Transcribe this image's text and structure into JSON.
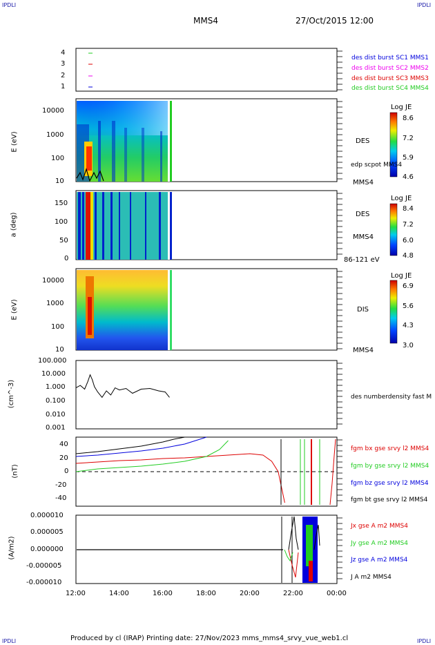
{
  "corners": {
    "tl": "IPDLI",
    "tr": "IPDLI",
    "bl": "IPDLI",
    "br": "IPDLI"
  },
  "header": {
    "spacecraft": "MMS4",
    "datetime": "27/Oct/2015 12:00"
  },
  "footer": "Produced by cl (IRAP)   Printing date: 27/Nov/2023   mms_mms4_srvy_vue_web1.cl",
  "colors": {
    "black": "#000000",
    "red": "#dd0000",
    "green": "#22cc22",
    "blue": "#0000dd",
    "magenta": "#ee00ee"
  },
  "chart_data": [
    {
      "type": "line",
      "title": "",
      "panel": "burst-availability",
      "yticks": [
        "4",
        "3",
        "2",
        "1"
      ],
      "series": [
        {
          "name": "des dist burst SC1 MMS1",
          "color": "#0000dd"
        },
        {
          "name": "des dist burst SC2 MMS2",
          "color": "#ee00ee"
        },
        {
          "name": "des dist burst SC3 MMS3",
          "color": "#dd0000"
        },
        {
          "name": "des dist burst SC4 MMS4",
          "color": "#22cc22"
        }
      ]
    },
    {
      "type": "heatmap",
      "panel": "des-energy-spectrogram",
      "ylabel": "E (eV)",
      "yticks": [
        "10000",
        "1000",
        "100",
        "10"
      ],
      "instrument": "DES",
      "overlay_label": "edp scpot MMS4",
      "spacecraft": "MMS4",
      "colorbar": {
        "title": "Log JE",
        "ticks": [
          "8.6",
          "7.2",
          "5.9",
          "4.6"
        ]
      }
    },
    {
      "type": "heatmap",
      "panel": "des-pitch-angle",
      "ylabel": "a (deg)",
      "yticks": [
        "150",
        "100",
        "50",
        "0"
      ],
      "instrument": "DES",
      "spacecraft": "MMS4",
      "energy_range": "86-121 eV",
      "colorbar": {
        "title": "Log JE",
        "ticks": [
          "8.4",
          "7.2",
          "6.0",
          "4.8"
        ]
      }
    },
    {
      "type": "heatmap",
      "panel": "dis-energy-spectrogram",
      "ylabel": "E (eV)",
      "yticks": [
        "10000",
        "1000",
        "100",
        "10"
      ],
      "instrument": "DIS",
      "spacecraft": "MMS4",
      "colorbar": {
        "title": "Log JE",
        "ticks": [
          "6.9",
          "5.6",
          "4.3",
          "3.0"
        ]
      }
    },
    {
      "type": "line",
      "panel": "density",
      "ylabel": "(cm^-3)",
      "yticks": [
        "100.000",
        "10.000",
        "1.000",
        "0.100",
        "0.010",
        "0.001"
      ],
      "log_scale": true,
      "series": [
        {
          "name": "des numberdensity fast M",
          "color": "#000000",
          "x_hours": [
            12.0,
            12.2,
            12.4,
            12.55,
            12.65,
            12.75,
            12.85,
            13.0,
            13.2,
            13.4,
            13.6,
            13.8,
            14.0,
            14.3,
            14.6,
            15.0,
            15.4,
            15.8,
            16.1,
            16.3
          ],
          "values": [
            1.0,
            1.5,
            0.8,
            3.0,
            9.0,
            4.0,
            1.2,
            0.5,
            0.2,
            0.6,
            0.3,
            1.0,
            0.7,
            0.9,
            0.4,
            0.8,
            0.9,
            0.6,
            0.5,
            0.2
          ]
        }
      ]
    },
    {
      "type": "line",
      "panel": "magnetic-field",
      "ylabel": "(nT)",
      "yticks": [
        "40",
        "20",
        "0",
        "-20",
        "-40"
      ],
      "ylim": [
        -50,
        50
      ],
      "series": [
        {
          "name": "fgm bx gse srvy l2 MMS4",
          "color": "#dd0000",
          "x_hours": [
            12.0,
            13.0,
            14.0,
            15.0,
            16.0,
            17.0,
            18.0,
            19.0,
            20.0,
            20.6,
            21.0,
            21.3,
            21.6
          ],
          "values": [
            12,
            14,
            16,
            17,
            19,
            20,
            22,
            24,
            26,
            24,
            15,
            0,
            -45
          ]
        },
        {
          "name": "fgm by gse srvy l2 MMS4",
          "color": "#22cc22",
          "x_hours": [
            12.0,
            13.0,
            14.0,
            15.0,
            16.0,
            17.0,
            18.0,
            18.6,
            19.0
          ],
          "values": [
            0,
            4,
            6,
            8,
            11,
            15,
            22,
            32,
            45
          ]
        },
        {
          "name": "fgm bz gse srvy l2 MMS4",
          "color": "#0000dd",
          "x_hours": [
            12.0,
            13.0,
            14.0,
            15.0,
            16.0,
            17.0,
            17.5,
            18.0
          ],
          "values": [
            22,
            24,
            27,
            30,
            34,
            40,
            45,
            50
          ]
        },
        {
          "name": "fgm bt gse srvy l2 MMS4",
          "color": "#000000",
          "x_hours": [
            12.0,
            13.0,
            14.0,
            15.0,
            16.0,
            16.5,
            17.0
          ],
          "values": [
            26,
            29,
            33,
            37,
            43,
            47,
            50
          ]
        }
      ]
    },
    {
      "type": "line",
      "panel": "current-density",
      "ylabel": "(A/m2)",
      "yticks": [
        "0.000010",
        "0.000005",
        "0.000000",
        "-0.000005",
        "-0.000010"
      ],
      "ylim": [
        -1e-05,
        1e-05
      ],
      "series": [
        {
          "name": "Jx gse A m2 MMS4",
          "color": "#dd0000"
        },
        {
          "name": "Jy gse A m2 MMS4",
          "color": "#22cc22"
        },
        {
          "name": "Jz gse A m2 MMS4",
          "color": "#0000dd"
        },
        {
          "name": "J A m2 MMS4",
          "color": "#000000"
        }
      ]
    }
  ],
  "xaxis": {
    "ticks": [
      "12:00",
      "14:00",
      "16:00",
      "18:00",
      "20:00",
      "22:00",
      "00:00"
    ],
    "range_hours": [
      12,
      24
    ]
  }
}
